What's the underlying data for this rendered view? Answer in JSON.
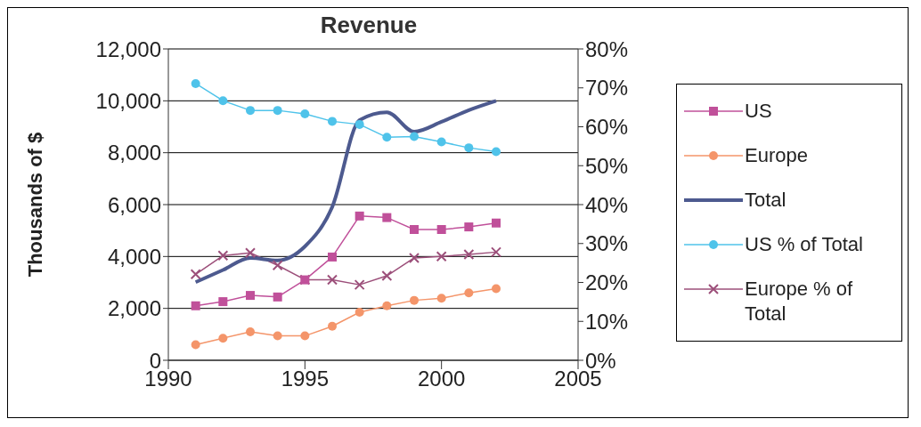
{
  "chart_data": {
    "type": "line",
    "title": "Revenue",
    "ylabel": "Thousands of $",
    "x": [
      1991,
      1992,
      1993,
      1994,
      1995,
      1996,
      1997,
      1998,
      1999,
      2000,
      2001,
      2002
    ],
    "series": [
      {
        "name": "US",
        "color": "#c0509a",
        "marker": "square",
        "values": [
          2100,
          2260,
          2500,
          2440,
          3100,
          3980,
          5560,
          5500,
          5040,
          5040,
          5140,
          5290
        ]
      },
      {
        "name": "Europe",
        "color": "#f4956a",
        "marker": "circle",
        "values": [
          600,
          850,
          1100,
          940,
          940,
          1310,
          1850,
          2100,
          2310,
          2390,
          2600,
          2760
        ]
      },
      {
        "name": "Total",
        "color": "#4d5a8f",
        "marker": "none",
        "values": [
          3010,
          3480,
          3940,
          3850,
          4390,
          5910,
          9260,
          9560,
          8810,
          9190,
          9640,
          10000
        ]
      },
      {
        "name": "US % of Total",
        "color": "#4fc3ea",
        "marker": "circle",
        "axis": "y2",
        "values": [
          71.1,
          66.7,
          64.2,
          64.2,
          63.3,
          61.4,
          60.6,
          57.3,
          57.5,
          56.1,
          54.6,
          53.6
        ]
      },
      {
        "name": "Europe % of Total",
        "color": "#9c4f7a",
        "marker": "cross",
        "axis": "y2",
        "values": [
          22.1,
          26.9,
          27.6,
          24.4,
          20.7,
          20.7,
          19.4,
          21.7,
          26.3,
          26.7,
          27.2,
          27.8
        ]
      }
    ],
    "xlim": [
      1990,
      2005
    ],
    "xticks": [
      1990,
      1995,
      2000,
      2005
    ],
    "ylim": [
      0,
      12000
    ],
    "yticks": [
      0,
      {
        "value": 2000,
        "label": "2,000"
      },
      {
        "value": 4000,
        "label": "4,000"
      },
      {
        "value": 6000,
        "label": "6,000"
      },
      {
        "value": 8000,
        "label": "8,000"
      },
      {
        "value": 10000,
        "label": "10,000"
      },
      {
        "value": 12000,
        "label": "12,000"
      }
    ],
    "y2lim": [
      0,
      80
    ],
    "y2ticks": [
      {
        "value": 0,
        "label": "0%"
      },
      {
        "value": 10,
        "label": "10%"
      },
      {
        "value": 20,
        "label": "20%"
      },
      {
        "value": 30,
        "label": "30%"
      },
      {
        "value": 40,
        "label": "40%"
      },
      {
        "value": 50,
        "label": "50%"
      },
      {
        "value": 60,
        "label": "60%"
      },
      {
        "value": 70,
        "label": "70%"
      },
      {
        "value": 80,
        "label": "80%"
      }
    ],
    "grid": "y",
    "legend": "right"
  }
}
